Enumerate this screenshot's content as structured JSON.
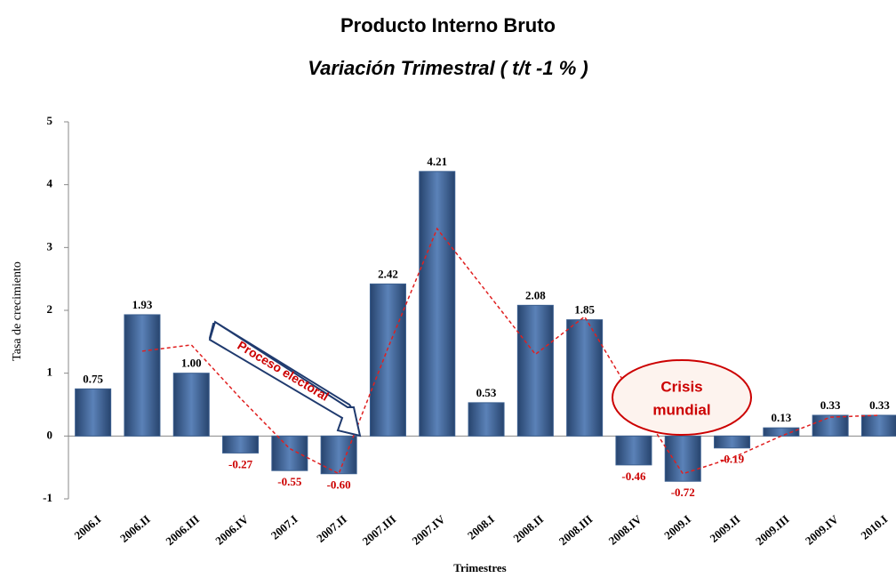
{
  "chart_data": {
    "type": "bar",
    "title": "Producto Interno Bruto",
    "subtitle": "Variación Trimestral ( t/t -1 % )",
    "y_label": "Tasa de crecimiento",
    "x_label": "Trimestres",
    "categories": [
      "2006.I",
      "2006.II",
      "2006.III",
      "2006.IV",
      "2007.I",
      "2007.II",
      "2007.III",
      "2007.IV",
      "2008.I",
      "2008.II",
      "2008.III",
      "2008.IV",
      "2009.I",
      "2009.II",
      "2009.III",
      "2009.IV",
      "2010.I"
    ],
    "values": [
      0.75,
      1.93,
      1.0,
      -0.27,
      -0.55,
      -0.6,
      2.42,
      4.21,
      0.53,
      2.08,
      1.85,
      -0.46,
      -0.72,
      -0.19,
      0.13,
      0.33,
      0.33
    ],
    "value_labels": [
      "0.75",
      "1.93",
      "1.00",
      "-0.27",
      "-0.55",
      "-0.60",
      "2.42",
      "4.21",
      "0.53",
      "2.08",
      "1.85",
      "-0.46",
      "-0.72",
      "-0.19",
      "0.13",
      "0.33",
      "0.33"
    ],
    "color": "#3b5f8f",
    "negative_label_color": "#cc0000",
    "trend": {
      "color": "#e02020",
      "values": [
        null,
        1.35,
        1.45,
        0.6,
        -0.2,
        -0.6,
        1.4,
        3.3,
        2.3,
        1.3,
        1.9,
        0.6,
        -0.6,
        -0.35,
        0.0,
        0.3,
        0.33
      ]
    },
    "ylim": [
      -1,
      5
    ],
    "yticks": [
      -1,
      0,
      1,
      2,
      3,
      4,
      5
    ],
    "annotations": [
      "Proceso electoral",
      "Crisis",
      "mundial"
    ]
  }
}
